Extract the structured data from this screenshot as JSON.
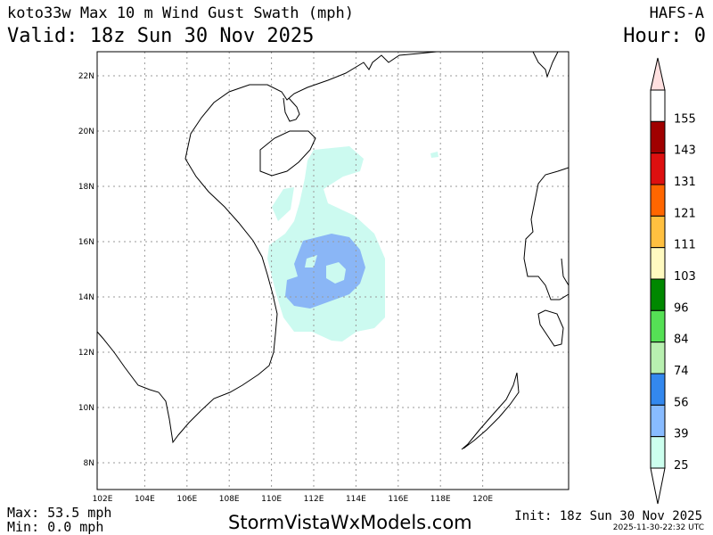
{
  "header": {
    "title": "koto33w Max 10 m Wind Gust Swath (mph)",
    "valid": "Valid: 18z Sun 30 Nov 2025",
    "model": "HAFS-A",
    "hour": "Hour: 0"
  },
  "footer": {
    "max": "Max: 53.5 mph",
    "min": "Min: 0.0 mph",
    "brand": "StormVistaWxModels.com",
    "init": "Init: 18z Sun 30 Nov 2025",
    "stamp": "2025-11-30-22:32 UTC"
  },
  "map": {
    "lon_labels": [
      "102E",
      "104E",
      "106E",
      "108E",
      "110E",
      "112E",
      "114E",
      "116E",
      "118E",
      "120E"
    ],
    "lat_labels": [
      "22N",
      "20N",
      "18N",
      "16N",
      "14N",
      "12N",
      "10N",
      "8N"
    ]
  },
  "legend": {
    "levels": [
      "155",
      "143",
      "131",
      "121",
      "111",
      "103",
      "96",
      "84",
      "74",
      "56",
      "39",
      "25"
    ],
    "colors": [
      "#ffffff",
      "#a00000",
      "#dd1010",
      "#ff6600",
      "#ffc040",
      "#fffac0",
      "#008800",
      "#55e055",
      "#b8f0b0",
      "#3388ee",
      "#88bbff",
      "#ccffee"
    ],
    "top_arrow_color": "#ffe0e0",
    "bottom_arrow_color": "#ffffff"
  },
  "swath_colors": {
    "band_25_39": "#ccfaf0",
    "band_39_56": "#8ab6f6"
  }
}
